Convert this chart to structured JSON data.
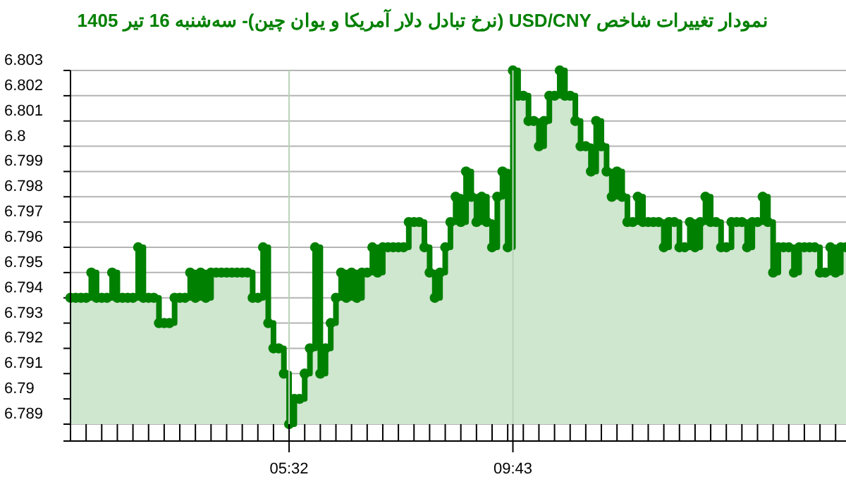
{
  "chart_data": {
    "type": "area",
    "title": "نمودار تغییرات شاخص USD/CNY (نرخ تبادل دلار آمریکا و یوان چین)- سه‌شنبه  16 تیر 1405",
    "categories": [
      null,
      null,
      null,
      null,
      null,
      null,
      null,
      null,
      null,
      null,
      null,
      null,
      null,
      null,
      null,
      null,
      null,
      null,
      null,
      null,
      null,
      null,
      null,
      null,
      null,
      null,
      null,
      null,
      null,
      null,
      null,
      null,
      null,
      null,
      null,
      null,
      null,
      null,
      null,
      null,
      null,
      null,
      "05:32",
      null,
      null,
      null,
      null,
      null,
      null,
      null,
      null,
      null,
      null,
      null,
      null,
      null,
      null,
      null,
      null,
      null,
      null,
      null,
      null,
      null,
      null,
      null,
      null,
      null,
      null,
      null,
      null,
      null,
      null,
      null,
      null,
      null,
      null,
      null,
      null,
      null,
      null,
      null,
      null,
      null,
      null,
      "09:43",
      null,
      null,
      null,
      null,
      null,
      null,
      null,
      null,
      null,
      null,
      null,
      null,
      null,
      null,
      null,
      null,
      null,
      null,
      null,
      null,
      null,
      null,
      null,
      null,
      null,
      null,
      null,
      null,
      null,
      null,
      null,
      null,
      null,
      null,
      null,
      null,
      null,
      null,
      null,
      null,
      null,
      null,
      null,
      null,
      null,
      null,
      null,
      null,
      null,
      null,
      null,
      null,
      null,
      null,
      null,
      null,
      null,
      null,
      null,
      null,
      null,
      null,
      null,
      null
    ],
    "series": [
      {
        "color": "#008000",
        "values": [
          6.794,
          6.794,
          6.794,
          6.794,
          6.795,
          6.794,
          6.794,
          6.794,
          6.795,
          6.794,
          6.794,
          6.794,
          6.794,
          6.796,
          6.794,
          6.794,
          6.794,
          6.793,
          6.793,
          6.793,
          6.794,
          6.794,
          6.794,
          6.795,
          6.794,
          6.795,
          6.794,
          6.795,
          6.795,
          6.795,
          6.795,
          6.795,
          6.795,
          6.795,
          6.795,
          6.794,
          6.794,
          6.796,
          6.793,
          6.792,
          6.792,
          6.791,
          6.789,
          6.79,
          6.79,
          6.791,
          6.792,
          6.796,
          6.791,
          6.792,
          6.793,
          6.794,
          6.795,
          6.794,
          6.795,
          6.794,
          6.795,
          6.795,
          6.796,
          6.795,
          6.796,
          6.796,
          6.796,
          6.796,
          6.796,
          6.797,
          6.797,
          6.797,
          6.796,
          6.795,
          6.794,
          6.795,
          6.796,
          6.797,
          6.798,
          6.797,
          6.799,
          6.798,
          6.797,
          6.798,
          6.797,
          6.796,
          6.798,
          6.799,
          6.796,
          6.803,
          6.802,
          6.802,
          6.801,
          6.801,
          6.8,
          6.801,
          6.802,
          6.802,
          6.803,
          6.802,
          6.802,
          6.801,
          6.8,
          6.8,
          6.799,
          6.801,
          6.8,
          6.799,
          6.798,
          6.799,
          6.798,
          6.797,
          6.797,
          6.798,
          6.797,
          6.797,
          6.797,
          6.797,
          6.796,
          6.797,
          6.797,
          6.796,
          6.796,
          6.797,
          6.796,
          6.797,
          6.798,
          6.797,
          6.797,
          6.796,
          6.796,
          6.797,
          6.797,
          6.797,
          6.796,
          6.797,
          6.797,
          6.798,
          6.797,
          6.795,
          6.796,
          6.796,
          6.796,
          6.795,
          6.796,
          6.796,
          6.796,
          6.796,
          6.795,
          6.795,
          6.796,
          6.795,
          6.796,
          6.796
        ]
      }
    ],
    "ylim": [
      6.789,
      6.803
    ],
    "yticks": [
      6.789,
      6.79,
      6.791,
      6.792,
      6.793,
      6.794,
      6.795,
      6.796,
      6.797,
      6.798,
      6.799,
      6.8,
      6.801,
      6.802,
      6.803
    ],
    "grid": "y",
    "marker": "circle"
  }
}
